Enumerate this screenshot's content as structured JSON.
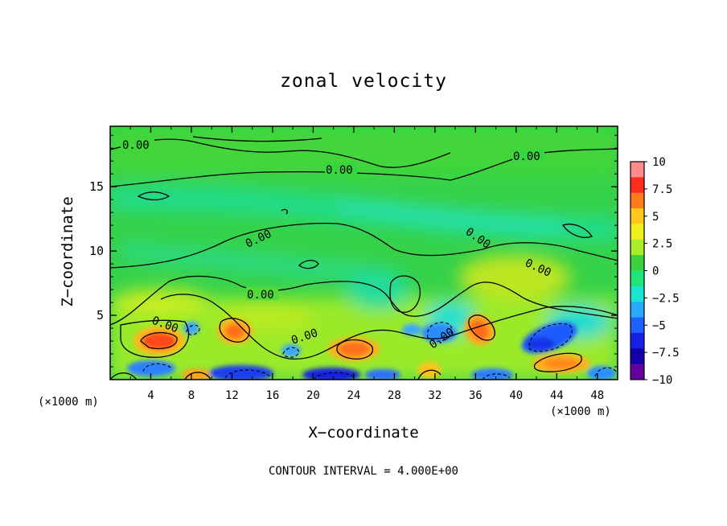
{
  "chart_data": {
    "type": "heatmap",
    "title": "zonal velocity",
    "xlabel": "X−coordinate",
    "ylabel": "Z−coordinate",
    "x_unit_left": "(×1000 m)",
    "x_unit_right": "(×1000 m)",
    "footer": "CONTOUR INTERVAL = 4.000E+00",
    "x_ticks": [
      "4",
      "8",
      "12",
      "16",
      "20",
      "24",
      "28",
      "32",
      "36",
      "40",
      "44",
      "48"
    ],
    "x_tick_values": [
      4,
      8,
      12,
      16,
      20,
      24,
      28,
      32,
      36,
      40,
      44,
      48
    ],
    "y_ticks": [
      "5",
      "10",
      "15"
    ],
    "y_tick_values": [
      5,
      10,
      15
    ],
    "xlim": [
      0,
      50
    ],
    "ylim": [
      0,
      19.7
    ],
    "contour_interval": 4.0,
    "contour_label": "0.00",
    "colorbar": {
      "labels": [
        "10",
        "7.5",
        "5",
        "2.5",
        "0",
        "−2.5",
        "−5",
        "−7.5",
        "−10"
      ],
      "values": [
        10,
        7.5,
        5,
        2.5,
        0,
        -2.5,
        -5,
        -7.5,
        -10
      ],
      "colors": [
        "#ff8c8c",
        "#ff2d1e",
        "#ff7a1a",
        "#ffc81a",
        "#f0f01e",
        "#a8ee28",
        "#3cd23c",
        "#1ee678",
        "#18e6d2",
        "#28aaff",
        "#2060ff",
        "#1420e6",
        "#1400a8",
        "#6400a0"
      ]
    },
    "features": [
      {
        "kind": "max",
        "x": 4.7,
        "z": 3.4,
        "value": 8
      },
      {
        "kind": "max",
        "x": 12.5,
        "z": 4.0,
        "value": 5
      },
      {
        "kind": "max",
        "x": 24.0,
        "z": 2.4,
        "value": 5
      },
      {
        "kind": "max",
        "x": 35.8,
        "z": 4.2,
        "value": 6
      },
      {
        "kind": "max",
        "x": 44.5,
        "z": 1.5,
        "value": 5
      },
      {
        "kind": "max",
        "x": 8.3,
        "z": 0.3,
        "value": 5
      },
      {
        "kind": "max",
        "x": 30.5,
        "z": 1.0,
        "value": 4
      },
      {
        "kind": "min",
        "x": 4.5,
        "z": 0.8,
        "value": -6
      },
      {
        "kind": "min",
        "x": 13.5,
        "z": 0.5,
        "value": -7
      },
      {
        "kind": "min",
        "x": 22.0,
        "z": 0.4,
        "value": -8
      },
      {
        "kind": "min",
        "x": 31.5,
        "z": 4.0,
        "value": -6
      },
      {
        "kind": "min",
        "x": 43.0,
        "z": 3.5,
        "value": -7
      },
      {
        "kind": "min",
        "x": 38.0,
        "z": 0.4,
        "value": -5
      },
      {
        "kind": "min",
        "x": 8.0,
        "z": 4.0,
        "value": -4
      }
    ]
  }
}
